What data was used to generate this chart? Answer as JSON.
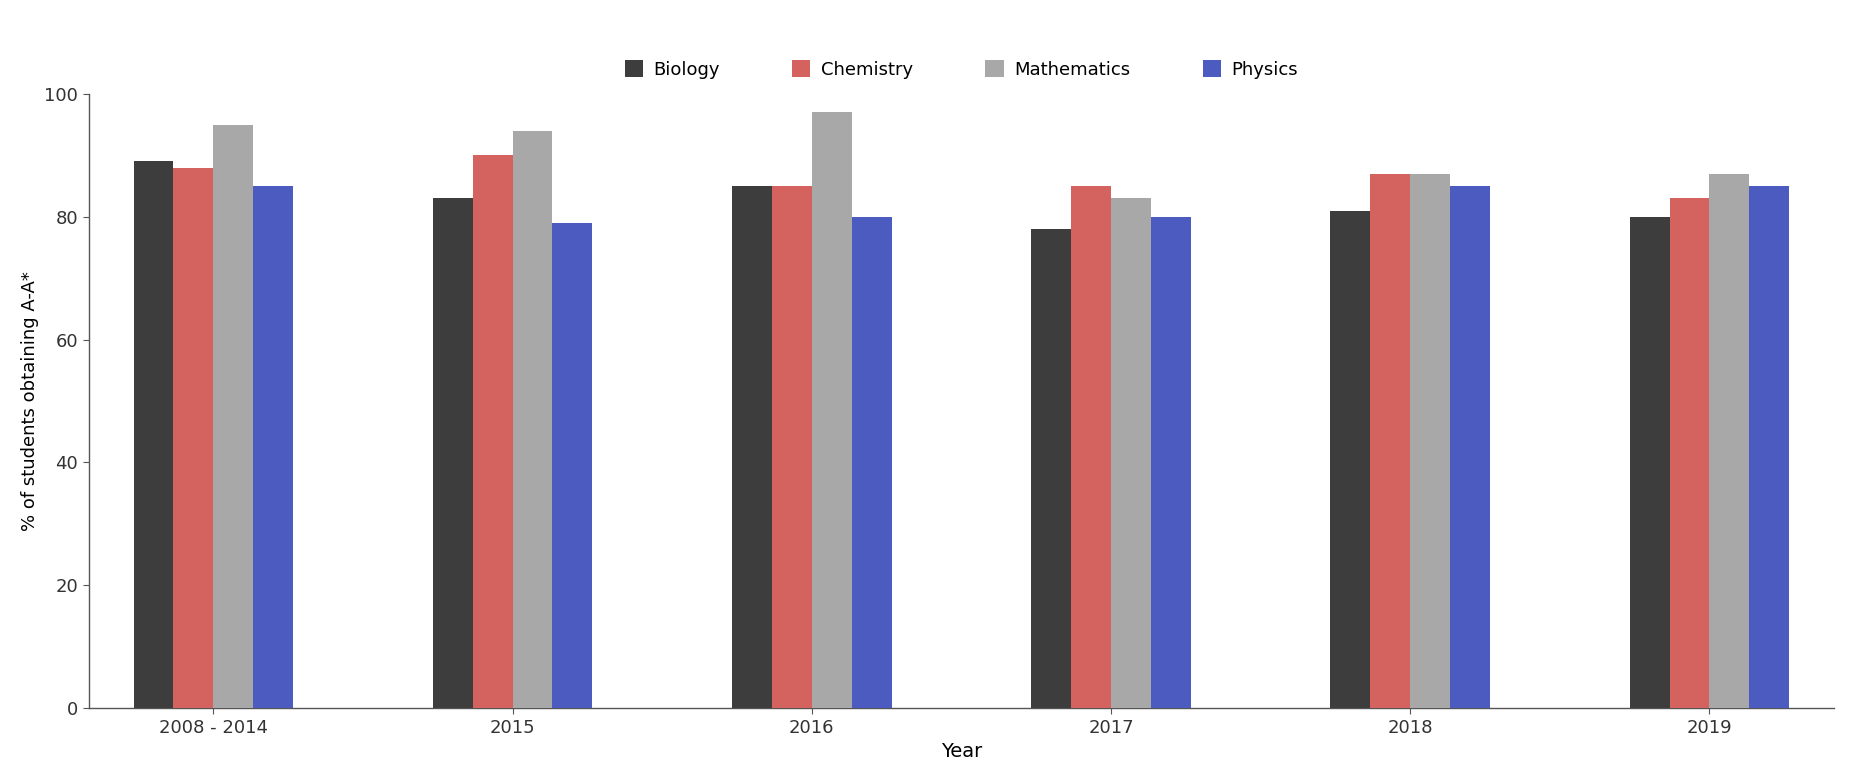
{
  "categories": [
    "2008 - 2014",
    "2015",
    "2016",
    "2017",
    "2018",
    "2019"
  ],
  "series": {
    "Biology": [
      89,
      83,
      85,
      78,
      81,
      80
    ],
    "Chemistry": [
      88,
      90,
      85,
      85,
      87,
      83
    ],
    "Mathematics": [
      95,
      94,
      97,
      83,
      87,
      87
    ],
    "Physics": [
      85,
      79,
      80,
      80,
      85,
      85
    ]
  },
  "colors": {
    "Biology": "#3d3d3d",
    "Chemistry": "#d4625e",
    "Mathematics": "#a8a8a8",
    "Physics": "#4b5bbf"
  },
  "ylabel": "% of students obtaining A-A*",
  "xlabel": "Year",
  "ylim": [
    0,
    100
  ],
  "yticks": [
    0,
    20,
    40,
    60,
    80,
    100
  ],
  "bar_width": 0.16,
  "legend_labels": [
    "Biology",
    "Chemistry",
    "Mathematics",
    "Physics"
  ],
  "background_color": "#ffffff",
  "figsize": [
    18.55,
    7.82
  ],
  "dpi": 100
}
